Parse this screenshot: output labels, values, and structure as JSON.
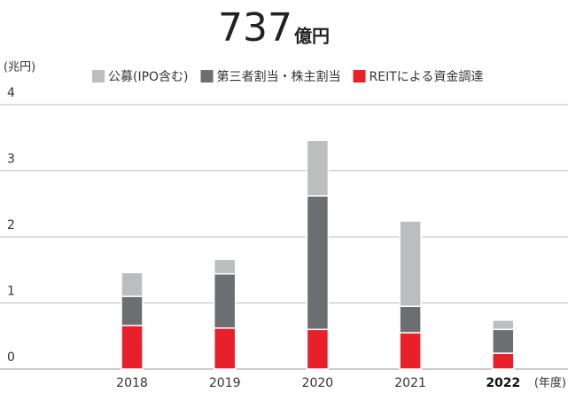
{
  "chart_data": {
    "type": "stacked_bar",
    "title": "737",
    "title_unit": "億円",
    "y_label": "(兆円)",
    "x_label": "(年度)",
    "categories": [
      "2018",
      "2019",
      "2020",
      "2021",
      "2022"
    ],
    "highlight_category": 4,
    "series": [
      {
        "name": "REITによる資金調達",
        "color": "#e8202a",
        "values": [
          0.66,
          0.62,
          0.6,
          0.55,
          0.24
        ]
      },
      {
        "name": "第三者割当・株主割当",
        "color": "#6d6e71",
        "values": [
          0.44,
          0.82,
          2.02,
          0.4,
          0.36
        ]
      },
      {
        "name": "公募(IPO含む)",
        "color": "#bcbdbf",
        "values": [
          0.36,
          0.22,
          0.84,
          1.29,
          0.14
        ]
      }
    ],
    "legend_order": [
      2,
      1,
      0
    ],
    "ylim": [
      0,
      4
    ],
    "yticks": [
      0,
      1,
      2,
      3,
      4
    ],
    "grid": true
  }
}
